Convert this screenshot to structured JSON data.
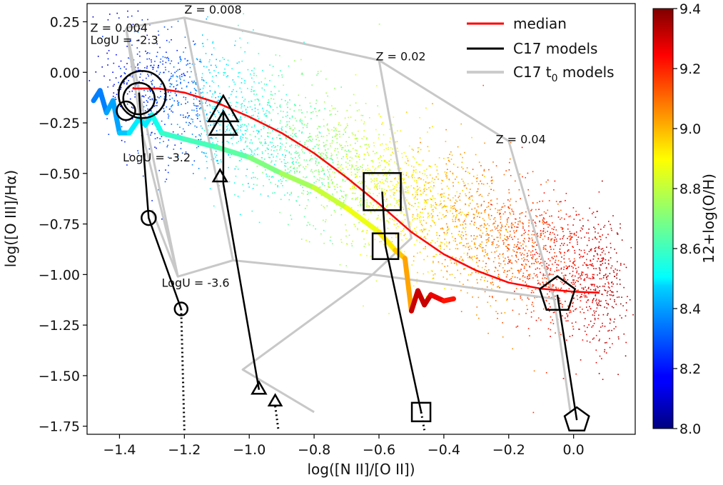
{
  "chart_data": {
    "type": "scatter",
    "xlabel": "log([N II]/[O II])",
    "ylabel": "log([O III]/Hα)",
    "xlim": [
      -1.5,
      0.19
    ],
    "ylim": [
      -1.79,
      0.34
    ],
    "x_ticks": [
      -1.4,
      -1.2,
      -1.0,
      -0.8,
      -0.6,
      -0.4,
      -0.2,
      0.0
    ],
    "x_tick_labels": [
      "−1.4",
      "−1.2",
      "−1.0",
      "−0.8",
      "−0.6",
      "−0.4",
      "−0.2",
      "0.0"
    ],
    "y_ticks": [
      0.25,
      0.0,
      -0.25,
      -0.5,
      -0.75,
      -1.0,
      -1.25,
      -1.5,
      -1.75
    ],
    "y_tick_labels": [
      "0.25",
      "0.00",
      "−0.25",
      "−0.50",
      "−0.75",
      "−1.00",
      "−1.25",
      "−1.50",
      "−1.75"
    ],
    "colorbar": {
      "label": "12+log(O/H)",
      "range": [
        8.0,
        9.4
      ],
      "ticks": [
        8.0,
        8.2,
        8.4,
        8.6,
        8.8,
        9.0,
        9.2,
        9.4
      ],
      "tick_labels": [
        "8.0",
        "8.2",
        "8.4",
        "8.6",
        "8.8",
        "9.0",
        "9.2",
        "9.4"
      ],
      "colormap": "jet"
    },
    "legend": {
      "position": "top-right",
      "entries": [
        {
          "label": "median",
          "color": "#ff0000"
        },
        {
          "label": "C17 models",
          "color": "#000000"
        },
        {
          "label": "C17 t",
          "subscript": "0",
          "suffix": " models",
          "color": "#cccccc"
        }
      ]
    },
    "scatter_cloud": {
      "description_points": "sampled along a diagonal band",
      "band_center": [
        [
          -1.38,
          -0.03
        ],
        [
          -1.0,
          -0.25
        ],
        [
          -0.6,
          -0.55
        ],
        [
          -0.2,
          -0.85
        ],
        [
          0.1,
          -1.05
        ]
      ],
      "color_by": "12+log(O/H)"
    },
    "median_curve": [
      [
        -1.36,
        -0.08
      ],
      [
        -1.28,
        -0.08
      ],
      [
        -1.2,
        -0.1
      ],
      [
        -1.1,
        -0.15
      ],
      [
        -1.0,
        -0.22
      ],
      [
        -0.9,
        -0.3
      ],
      [
        -0.8,
        -0.4
      ],
      [
        -0.7,
        -0.52
      ],
      [
        -0.6,
        -0.65
      ],
      [
        -0.5,
        -0.79
      ],
      [
        -0.4,
        -0.9
      ],
      [
        -0.3,
        -0.98
      ],
      [
        -0.2,
        -1.04
      ],
      [
        -0.1,
        -1.07
      ],
      [
        0.0,
        -1.085
      ],
      [
        0.08,
        -1.09
      ]
    ],
    "thick_colored_curve": {
      "points": [
        [
          -1.48,
          -0.14
        ],
        [
          -1.46,
          -0.09
        ],
        [
          -1.44,
          -0.2
        ],
        [
          -1.42,
          -0.14
        ],
        [
          -1.4,
          -0.3
        ],
        [
          -1.37,
          -0.3
        ],
        [
          -1.34,
          -0.23
        ],
        [
          -1.32,
          -0.26
        ],
        [
          -1.3,
          -0.21
        ],
        [
          -1.27,
          -0.3
        ],
        [
          -1.2,
          -0.33
        ],
        [
          -1.1,
          -0.37
        ],
        [
          -1.0,
          -0.42
        ],
        [
          -0.9,
          -0.5
        ],
        [
          -0.8,
          -0.57
        ],
        [
          -0.7,
          -0.67
        ],
        [
          -0.6,
          -0.79
        ],
        [
          -0.55,
          -0.88
        ],
        [
          -0.52,
          -0.92
        ],
        [
          -0.5,
          -1.18
        ],
        [
          -0.48,
          -1.08
        ],
        [
          -0.46,
          -1.15
        ],
        [
          -0.44,
          -1.1
        ],
        [
          -0.4,
          -1.13
        ],
        [
          -0.37,
          -1.12
        ]
      ],
      "metallicity": [
        8.35,
        8.35,
        8.4,
        8.4,
        8.45,
        8.5,
        8.5,
        8.5,
        8.55,
        8.6,
        8.62,
        8.65,
        8.7,
        8.75,
        8.8,
        8.85,
        8.9,
        8.95,
        9.0,
        9.3,
        9.3,
        9.3,
        9.25,
        9.2,
        9.15
      ]
    },
    "t0_grid": [
      [
        [
          -1.38,
          0.22
        ],
        [
          -1.2,
          0.27
        ],
        [
          -0.6,
          0.06
        ],
        [
          -0.2,
          -0.34
        ],
        [
          -0.06,
          -1.12
        ],
        [
          -0.01,
          -1.68
        ]
      ],
      [
        [
          -1.38,
          0.22
        ],
        [
          -1.22,
          -1.01
        ],
        [
          -1.05,
          -0.93
        ],
        [
          -0.62,
          -1.0
        ],
        [
          -0.06,
          -1.12
        ]
      ],
      [
        [
          -1.2,
          0.27
        ],
        [
          -1.05,
          -0.93
        ]
      ],
      [
        [
          -0.6,
          0.06
        ],
        [
          -0.5,
          -0.82
        ],
        [
          -0.62,
          -1.0
        ]
      ],
      [
        [
          -0.62,
          -1.0
        ],
        [
          -1.02,
          -1.47
        ],
        [
          -0.8,
          -1.68
        ]
      ],
      [
        [
          -1.22,
          -1.01
        ],
        [
          -1.3,
          -0.68
        ]
      ],
      [
        [
          -1.38,
          0.22
        ],
        [
          -1.33,
          -0.3
        ],
        [
          -1.22,
          -1.01
        ]
      ]
    ],
    "c17_models": [
      {
        "marker": "circle",
        "line": [
          [
            -1.34,
            -0.1
          ],
          [
            -1.31,
            -0.72
          ],
          [
            -1.21,
            -1.17
          ]
        ],
        "dotted": [
          [
            -1.21,
            -1.17
          ],
          [
            -1.2,
            -1.77
          ]
        ],
        "markers": [
          [
            -1.33,
            -0.11,
            33
          ],
          [
            -1.34,
            -0.13,
            22
          ],
          [
            -1.38,
            -0.19,
            13
          ],
          [
            -1.31,
            -0.72,
            10
          ],
          [
            -1.21,
            -1.17,
            9
          ]
        ]
      },
      {
        "marker": "triangle",
        "line": [
          [
            -1.08,
            -0.2
          ],
          [
            -1.08,
            -0.55
          ],
          [
            -0.97,
            -1.57
          ]
        ],
        "dotted": [
          [
            -0.92,
            -1.65
          ],
          [
            -0.91,
            -1.77
          ]
        ],
        "markers": [
          [
            -1.08,
            -0.2,
            24
          ],
          [
            -1.08,
            -0.27,
            22
          ],
          [
            -1.09,
            -0.52,
            11
          ],
          [
            -0.97,
            -1.57,
            11
          ],
          [
            -0.92,
            -1.63,
            10
          ]
        ]
      },
      {
        "marker": "square",
        "line": [
          [
            -0.59,
            -0.59
          ],
          [
            -0.58,
            -0.86
          ],
          [
            -0.47,
            -1.68
          ]
        ],
        "dotted": [
          [
            -0.47,
            -1.68
          ],
          [
            -0.46,
            -1.77
          ]
        ],
        "markers": [
          [
            -0.59,
            -0.59,
            26
          ],
          [
            -0.58,
            -0.86,
            18
          ],
          [
            -0.47,
            -1.68,
            13
          ]
        ]
      },
      {
        "marker": "pentagon",
        "line": [
          [
            -0.05,
            -1.1
          ],
          [
            0.01,
            -1.72
          ]
        ],
        "dotted": [],
        "markers": [
          [
            -0.05,
            -1.1,
            26
          ],
          [
            0.01,
            -1.72,
            18
          ]
        ]
      }
    ],
    "annotations": [
      {
        "text": "Z = 0.004",
        "x": -1.49,
        "y": 0.2
      },
      {
        "text": "LogU = -2.3",
        "x": -1.49,
        "y": 0.14
      },
      {
        "text": "Z = 0.008",
        "x": -1.2,
        "y": 0.29
      },
      {
        "text": "Z = 0.02",
        "x": -0.61,
        "y": 0.06
      },
      {
        "text": "Z = 0.04",
        "x": -0.24,
        "y": -0.35
      },
      {
        "text": "LogU = -3.2",
        "x": -1.39,
        "y": -0.44
      },
      {
        "text": "LogU = -3.6",
        "x": -1.27,
        "y": -1.06
      }
    ]
  }
}
